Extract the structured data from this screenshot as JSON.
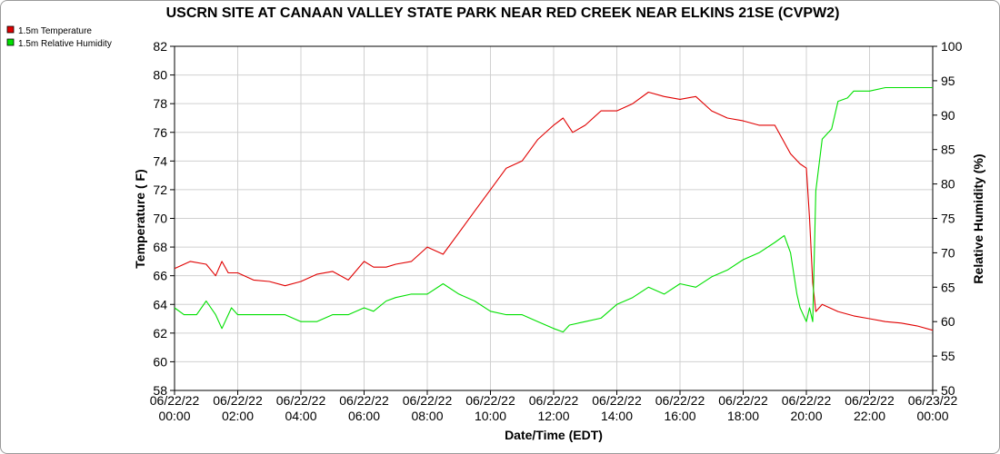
{
  "chart_data": {
    "type": "line",
    "title": "USCRN SITE AT CANAAN VALLEY STATE PARK NEAR RED CREEK NEAR ELKINS 21SE (CVPW2)",
    "xlabel": "Date/Time (EDT)",
    "ylabel": "Temperature ( F)",
    "y2label": "Relative Humidity (%)",
    "ylim": [
      58,
      82
    ],
    "y2lim": [
      50,
      100
    ],
    "xlim_hours": [
      0,
      24
    ],
    "x_ticks": [
      {
        "date": "06/22/22",
        "time": "00:00"
      },
      {
        "date": "06/22/22",
        "time": "02:00"
      },
      {
        "date": "06/22/22",
        "time": "04:00"
      },
      {
        "date": "06/22/22",
        "time": "06:00"
      },
      {
        "date": "06/22/22",
        "time": "08:00"
      },
      {
        "date": "06/22/22",
        "time": "10:00"
      },
      {
        "date": "06/22/22",
        "time": "12:00"
      },
      {
        "date": "06/22/22",
        "time": "14:00"
      },
      {
        "date": "06/22/22",
        "time": "16:00"
      },
      {
        "date": "06/22/22",
        "time": "18:00"
      },
      {
        "date": "06/22/22",
        "time": "20:00"
      },
      {
        "date": "06/22/22",
        "time": "22:00"
      },
      {
        "date": "06/23/22",
        "time": "00:00"
      }
    ],
    "y_ticks": [
      "58",
      "60",
      "62",
      "64",
      "66",
      "68",
      "70",
      "72",
      "74",
      "76",
      "78",
      "80",
      "82"
    ],
    "y2_ticks": [
      "50",
      "55",
      "60",
      "65",
      "70",
      "75",
      "80",
      "85",
      "90",
      "95",
      "100"
    ],
    "grid": true,
    "legend_position": "top-left",
    "colors": {
      "temperature": "#e00000",
      "humidity": "#00e000",
      "grid": "#d0d0d0"
    },
    "series": [
      {
        "name": "1.5m Temperature",
        "axis": "left",
        "color": "#e00000",
        "x_hours": [
          0.0,
          0.5,
          1.0,
          1.3,
          1.5,
          1.7,
          2.0,
          2.5,
          3.0,
          3.5,
          4.0,
          4.5,
          5.0,
          5.5,
          6.0,
          6.3,
          6.7,
          7.0,
          7.5,
          7.8,
          8.0,
          8.5,
          9.0,
          9.5,
          10.0,
          10.5,
          11.0,
          11.5,
          12.0,
          12.3,
          12.6,
          13.0,
          13.5,
          14.0,
          14.5,
          15.0,
          15.5,
          16.0,
          16.5,
          17.0,
          17.5,
          18.0,
          18.5,
          19.0,
          19.5,
          19.8,
          20.0,
          20.1,
          20.2,
          20.3,
          20.5,
          21.0,
          21.5,
          22.0,
          22.5,
          23.0,
          23.5,
          24.0
        ],
        "values": [
          66.5,
          67.0,
          66.8,
          66.0,
          67.0,
          66.2,
          66.2,
          65.7,
          65.6,
          65.3,
          65.6,
          66.1,
          66.3,
          65.7,
          67.0,
          66.6,
          66.6,
          66.8,
          67.0,
          67.6,
          68.0,
          67.5,
          69.0,
          70.5,
          72.0,
          73.5,
          74.0,
          75.5,
          76.5,
          77.0,
          76.0,
          76.5,
          77.5,
          77.5,
          78.0,
          78.8,
          78.5,
          78.3,
          78.5,
          77.5,
          77.0,
          76.8,
          76.5,
          76.5,
          74.5,
          73.8,
          73.5,
          70.0,
          65.5,
          63.5,
          64.0,
          63.5,
          63.2,
          63.0,
          62.8,
          62.7,
          62.5,
          62.2
        ]
      },
      {
        "name": "1.5m Relative Humidity",
        "axis": "right",
        "color": "#00e000",
        "x_hours": [
          0.0,
          0.3,
          0.7,
          1.0,
          1.3,
          1.5,
          1.8,
          2.0,
          2.5,
          3.0,
          3.5,
          4.0,
          4.5,
          5.0,
          5.5,
          6.0,
          6.3,
          6.7,
          7.0,
          7.5,
          8.0,
          8.5,
          9.0,
          9.5,
          10.0,
          10.5,
          11.0,
          11.5,
          12.0,
          12.3,
          12.5,
          13.0,
          13.5,
          14.0,
          14.5,
          15.0,
          15.5,
          16.0,
          16.5,
          17.0,
          17.5,
          18.0,
          18.5,
          19.0,
          19.3,
          19.5,
          19.7,
          19.8,
          20.0,
          20.1,
          20.2,
          20.3,
          20.5,
          20.8,
          21.0,
          21.3,
          21.5,
          22.0,
          22.5,
          23.0,
          23.5,
          24.0
        ],
        "values": [
          62.0,
          61.0,
          61.0,
          63.0,
          61.0,
          59.0,
          62.0,
          61.0,
          61.0,
          61.0,
          61.0,
          60.0,
          60.0,
          61.0,
          61.0,
          62.0,
          61.5,
          63.0,
          63.5,
          64.0,
          64.0,
          65.5,
          64.0,
          63.0,
          61.5,
          61.0,
          61.0,
          60.0,
          59.0,
          58.5,
          59.5,
          60.0,
          60.5,
          62.5,
          63.5,
          65.0,
          64.0,
          65.5,
          65.0,
          66.5,
          67.5,
          69.0,
          70.0,
          71.5,
          72.5,
          70.0,
          64.0,
          62.0,
          60.0,
          62.0,
          60.0,
          79.0,
          86.5,
          88.0,
          92.0,
          92.5,
          93.5,
          93.5,
          94.0,
          94.0,
          94.0,
          94.0
        ]
      }
    ]
  }
}
